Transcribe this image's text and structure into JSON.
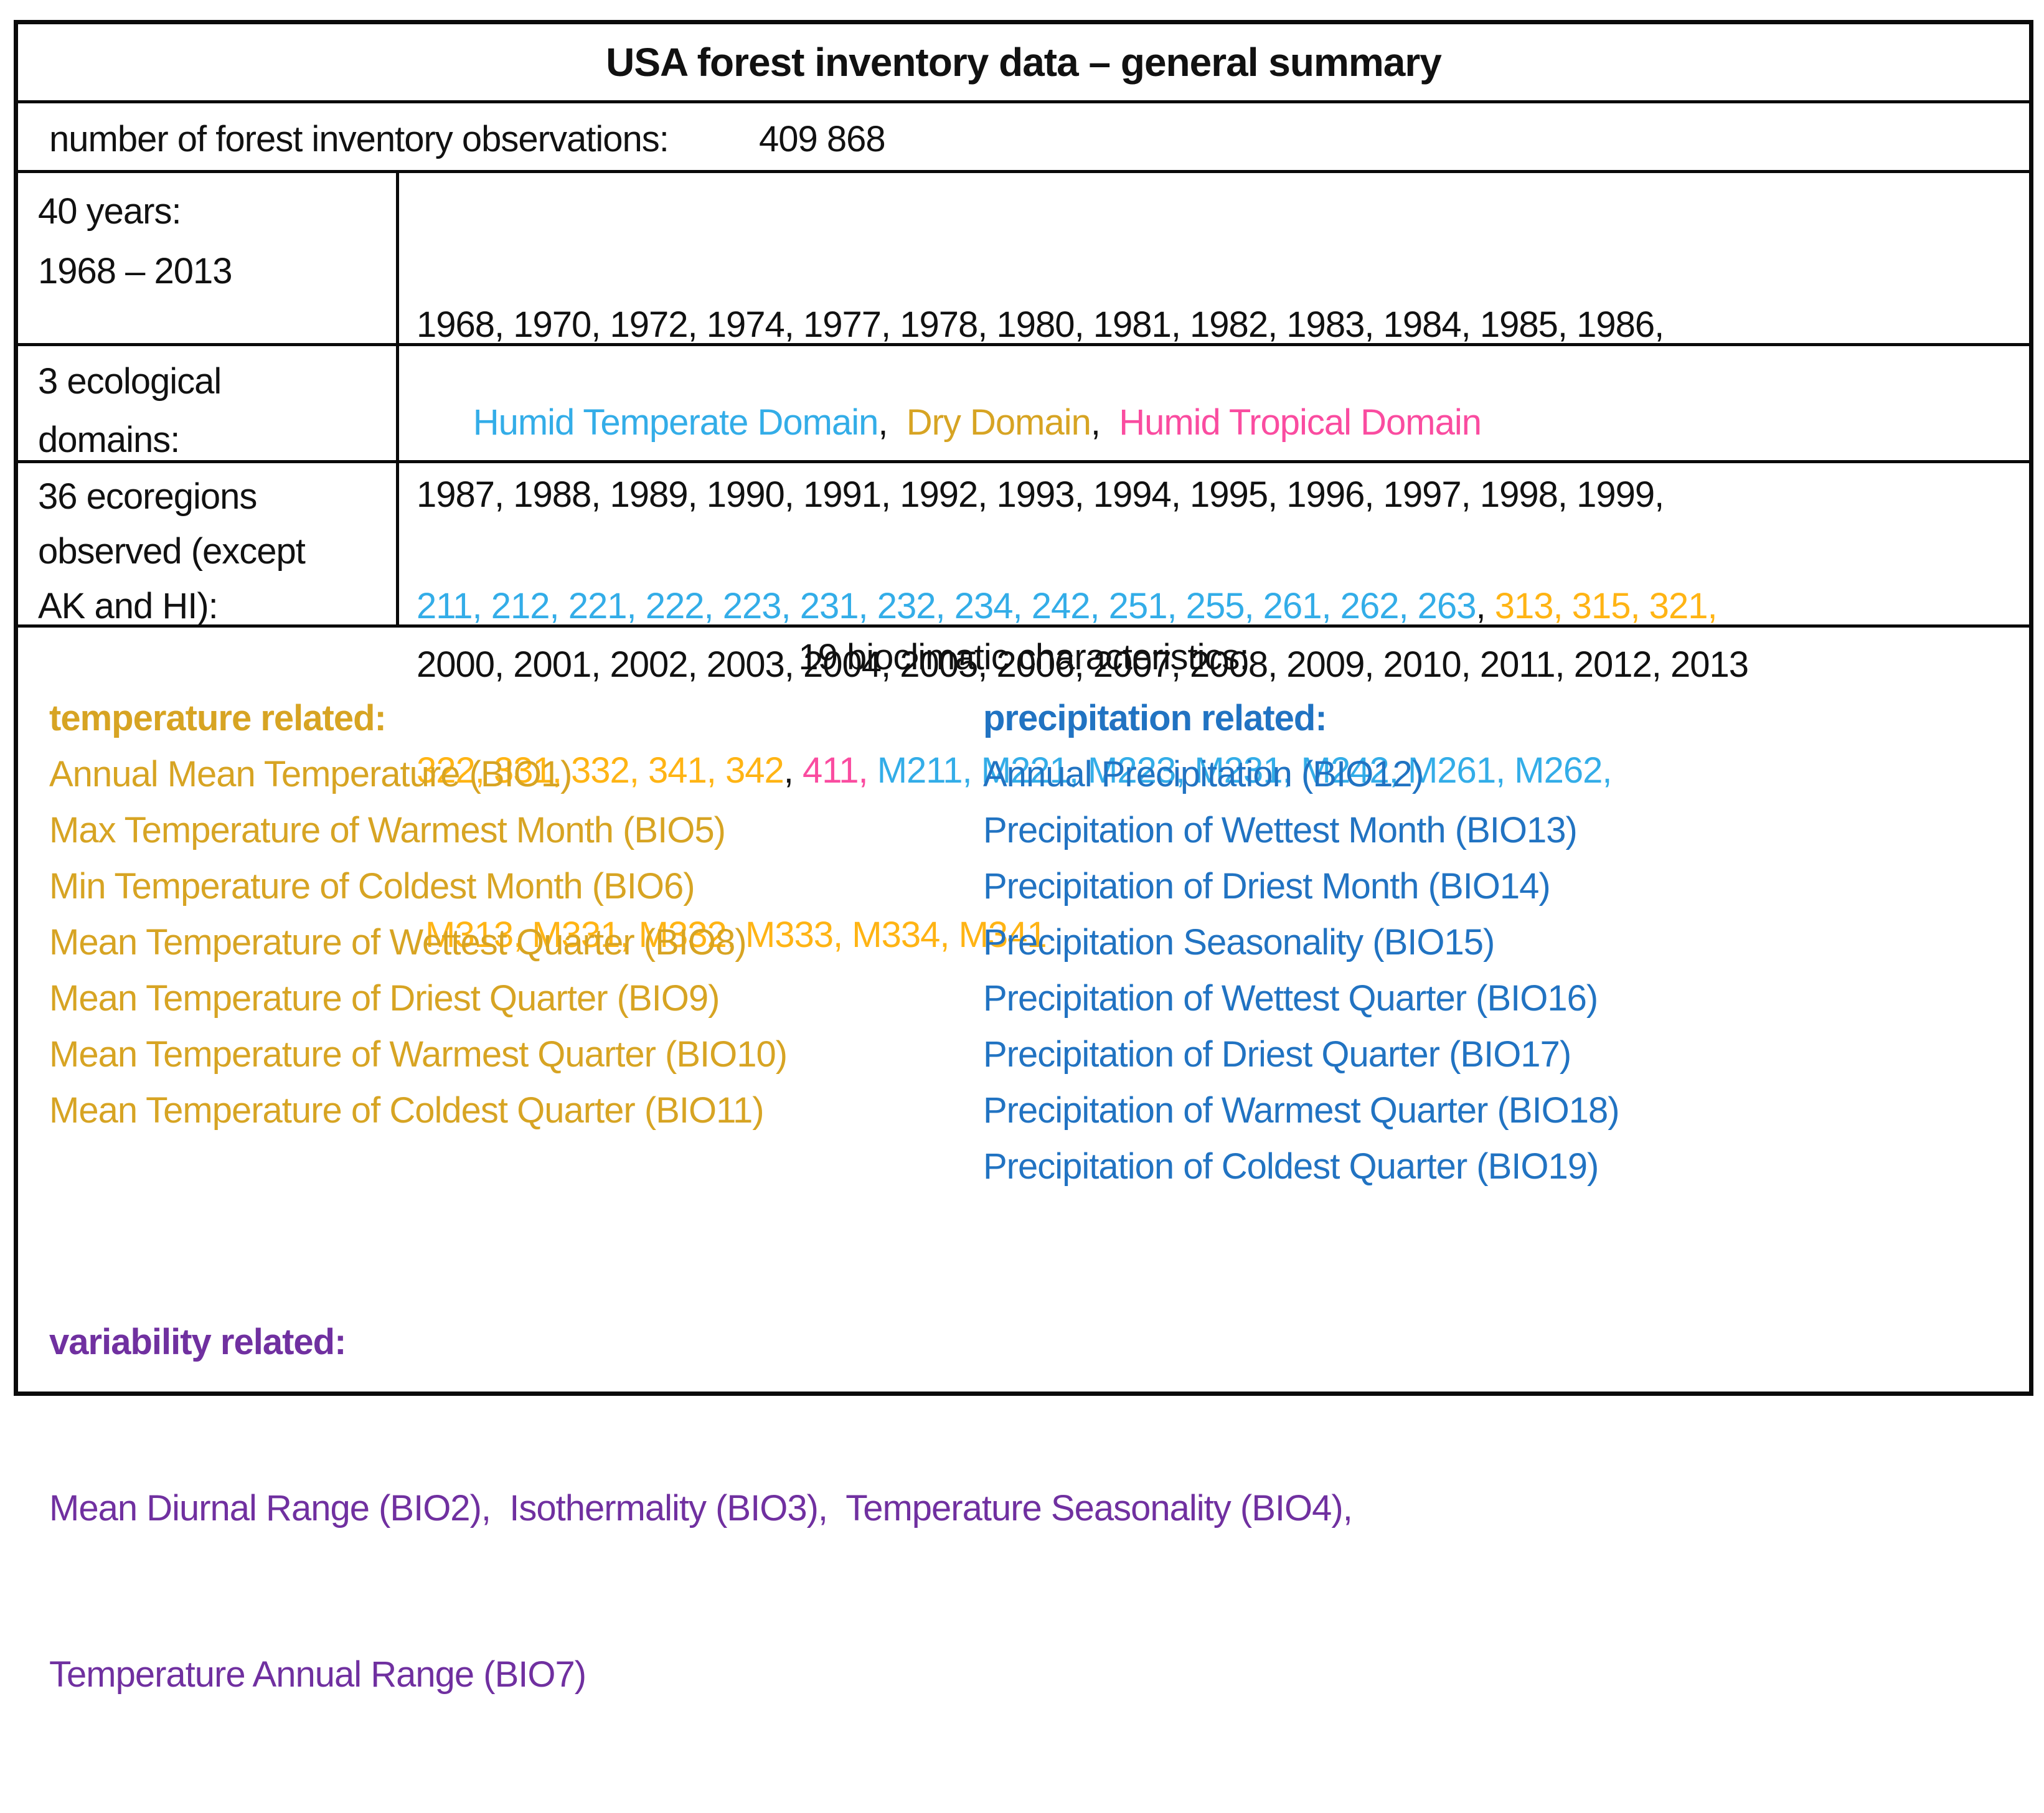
{
  "colors": {
    "cyan": "#33ADE8",
    "gold": "#D7A423",
    "amber": "#FFB414",
    "pink": "#FA4CA0",
    "blue": "#2173C2",
    "purple": "#7030A0",
    "text": "#111111"
  },
  "title": "USA forest inventory data – general summary",
  "observations": {
    "label": "number of forest inventory observations:",
    "value": "409 868"
  },
  "years": {
    "label_lines": [
      "40 years:",
      "1968 – 2013"
    ],
    "value_lines": [
      "1968, 1970, 1972, 1974, 1977, 1978, 1980, 1981, 1982, 1983, 1984, 1985, 1986,",
      "1987, 1988, 1989, 1990, 1991, 1992, 1993, 1994, 1995, 1996, 1997, 1998, 1999,",
      "2000, 2001, 2002, 2003, 2004, 2005, 2006, 2007, 2008, 2009, 2010, 2011, 2012, 2013"
    ]
  },
  "domains": {
    "label_lines": [
      "3 ecological",
      "domains:"
    ],
    "segments": [
      {
        "text": "Humid Temperate Domain",
        "color": "cyan"
      },
      {
        "text": ",  ",
        "color": "text"
      },
      {
        "text": "Dry Domain",
        "color": "gold"
      },
      {
        "text": ",  ",
        "color": "text"
      },
      {
        "text": "Humid Tropical Domain",
        "color": "pink"
      }
    ]
  },
  "ecoregions": {
    "label_lines": [
      "36 ecoregions",
      "observed (except",
      "AK and HI):"
    ],
    "lines": [
      [
        {
          "text": "211, 212, 221, 222, 223, 231, 232, 234, 242, 251, 255, 261, 262, 263",
          "color": "cyan"
        },
        {
          "text": ", ",
          "color": "text"
        },
        {
          "text": "313, 315, 321,",
          "color": "amber"
        }
      ],
      [
        {
          "text": "322, 331, 332, 341, 342",
          "color": "amber"
        },
        {
          "text": ", ",
          "color": "text"
        },
        {
          "text": "411,",
          "color": "pink"
        },
        {
          "text": " M211, M221, M223, M231, M242, M261, M262,",
          "color": "cyan"
        }
      ],
      [
        {
          "text": "M313, M331, M332, M333, M334, M341",
          "color": "amber"
        }
      ]
    ]
  },
  "bioclimatic": {
    "heading": "19 bioclimatic characteristics:",
    "temperature": {
      "color": "gold",
      "heading": "temperature related:",
      "items": [
        "Annual Mean Temperature (BIO1)",
        "Max Temperature of Warmest Month (BIO5)",
        "Min Temperature of Coldest Month (BIO6)",
        "Mean Temperature of Wettest Quarter (BIO8)",
        "Mean Temperature of Driest Quarter (BIO9)",
        "Mean Temperature of Warmest Quarter (BIO10)",
        "Mean Temperature of Coldest Quarter (BIO11)"
      ]
    },
    "precipitation": {
      "color": "blue",
      "heading": "precipitation related:",
      "items": [
        "Annual Precipitation (BIO12)",
        "Precipitation of Wettest Month (BIO13)",
        "Precipitation of Driest Month (BIO14)",
        "Precipitation Seasonality (BIO15)",
        "Precipitation of Wettest Quarter (BIO16)",
        "Precipitation of Driest Quarter (BIO17)",
        "Precipitation of Warmest Quarter (BIO18)",
        "Precipitation of Coldest Quarter (BIO19)"
      ]
    },
    "variability": {
      "color": "purple",
      "heading": "variability related:",
      "lines": [
        "Mean Diurnal Range (BIO2),  Isothermality (BIO3),  Temperature Seasonality (BIO4),",
        "Temperature Annual Range (BIO7)"
      ]
    }
  }
}
